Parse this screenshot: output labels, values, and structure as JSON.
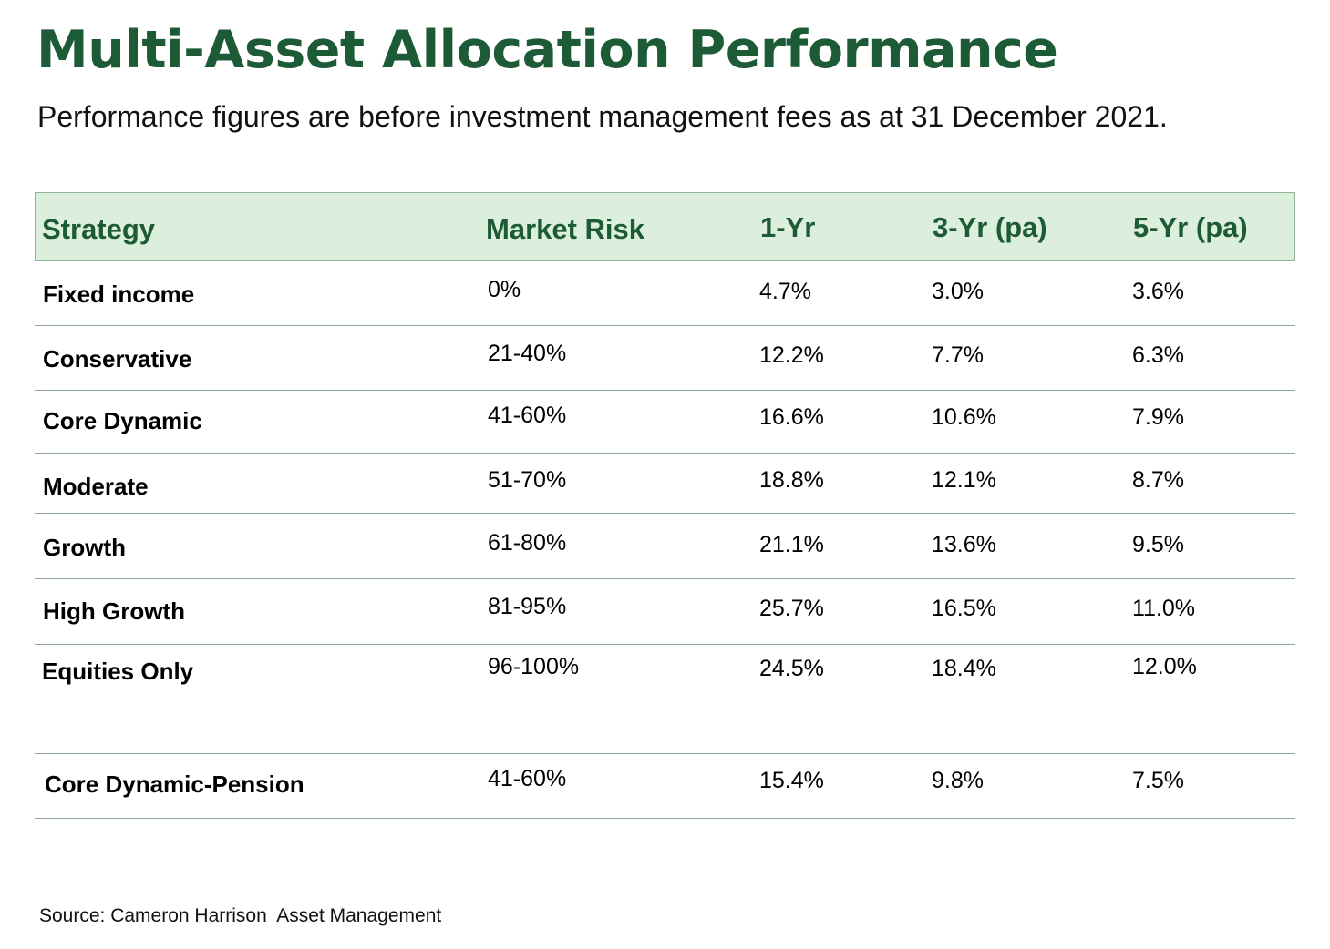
{
  "title": "Multi-Asset Allocation Performance",
  "subtitle": "Performance figures are before investment management fees as at 31 December 2021.",
  "colors": {
    "title": "#1d5a36",
    "header_bg": "#dcefdd",
    "header_text": "#1d5a36",
    "rule": "#8fa5a0"
  },
  "table": {
    "headers": [
      "Strategy",
      "Market Risk",
      "1-Yr",
      "3-Yr (pa)",
      "5-Yr (pa)"
    ],
    "rows": [
      [
        "Fixed income",
        "0%",
        "4.7%",
        "3.0%",
        "3.6%"
      ],
      [
        "Conservative",
        "21-40%",
        "12.2%",
        "7.7%",
        "6.3%"
      ],
      [
        "Core Dynamic",
        "41-60%",
        "16.6%",
        "10.6%",
        "7.9%"
      ],
      [
        "Moderate",
        "51-70%",
        "18.8%",
        "12.1%",
        "8.7%"
      ],
      [
        "Growth",
        "61-80%",
        "21.1%",
        "13.6%",
        "9.5%"
      ],
      [
        "High Growth",
        "81-95%",
        "25.7%",
        "16.5%",
        "11.0%"
      ],
      [
        "Equities Only",
        "96-100%",
        "24.5%",
        "18.4%",
        "12.0%"
      ]
    ],
    "pension_row": [
      "Core Dynamic-Pension",
      "41-60%",
      "15.4%",
      "9.8%",
      "7.5%"
    ]
  },
  "source": "Source: Cameron Harrison  Asset Management"
}
